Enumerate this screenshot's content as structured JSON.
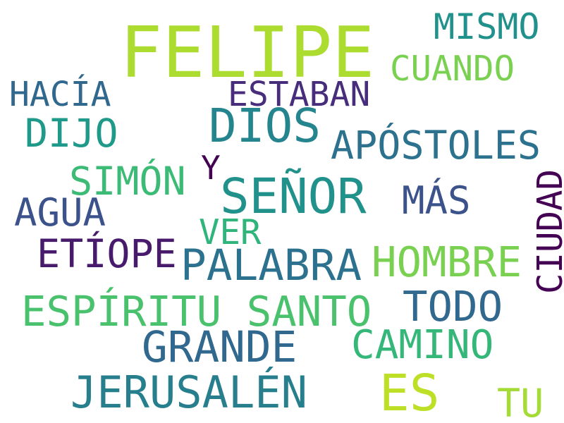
{
  "words": [
    {
      "text": "FELIPE",
      "color": "#addc30"
    },
    {
      "text": "MISMO",
      "color": "#21918c"
    },
    {
      "text": "CUANDO",
      "color": "#7ad151"
    },
    {
      "text": "HACÍA",
      "color": "#31688e"
    },
    {
      "text": "ESTABAN",
      "color": "#472d7b"
    },
    {
      "text": "DIOS",
      "color": "#25858e"
    },
    {
      "text": "DIJO",
      "color": "#1f9a8a"
    },
    {
      "text": "APÓSTOLES",
      "color": "#2c728e"
    },
    {
      "text": "Y",
      "color": "#440154"
    },
    {
      "text": "SIMÓN",
      "color": "#3bbb75"
    },
    {
      "text": "SEÑOR",
      "color": "#21918c"
    },
    {
      "text": "MÁS",
      "color": "#3b528b"
    },
    {
      "text": "AGUA",
      "color": "#3b528b"
    },
    {
      "text": "CIUDAD",
      "color": "#440154"
    },
    {
      "text": "VER",
      "color": "#2fb47c"
    },
    {
      "text": "ETÍOPE",
      "color": "#481a6c"
    },
    {
      "text": "PALABRA",
      "color": "#2c728e"
    },
    {
      "text": "HOMBRE",
      "color": "#7ad151"
    },
    {
      "text": "ESPÍRITU SANTO",
      "color": "#4ac16d"
    },
    {
      "text": "TODO",
      "color": "#31688e"
    },
    {
      "text": "GRANDE",
      "color": "#31688e"
    },
    {
      "text": "CAMINO",
      "color": "#35b779"
    },
    {
      "text": "JERUSALÉN",
      "color": "#277f8e"
    },
    {
      "text": "ES",
      "color": "#bddf26"
    },
    {
      "text": "TU",
      "color": "#a5db36"
    }
  ]
}
